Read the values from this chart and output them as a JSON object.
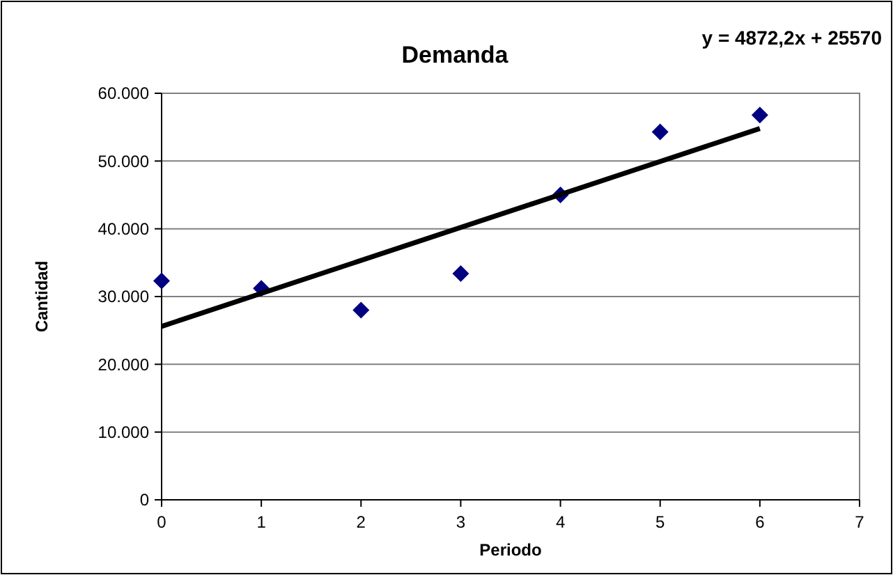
{
  "chart_data": {
    "type": "scatter",
    "title": "Demanda",
    "xlabel": "Periodo",
    "ylabel": "Cantidad",
    "annotations": [
      "y = 4872,2x + 25570"
    ],
    "x": [
      0,
      1,
      2,
      3,
      4,
      5,
      6
    ],
    "series": [
      {
        "color": "#000080",
        "values": [
          32300,
          31200,
          28000,
          33400,
          45000,
          54300,
          56800
        ],
        "marker": "diamond"
      },
      {
        "type": "line",
        "color": "#000000",
        "x": [
          0,
          6
        ],
        "values": [
          25600,
          54800
        ],
        "marker": "none",
        "line_style": "solid"
      }
    ],
    "xlim": [
      0,
      7
    ],
    "xticks": [
      0,
      1,
      2,
      3,
      4,
      5,
      6,
      7
    ],
    "ylim": [
      0,
      60000
    ],
    "yticks": [
      0,
      {
        "value": 10000,
        "label": "10.000"
      },
      {
        "value": 20000,
        "label": "20.000"
      },
      {
        "value": 30000,
        "label": "30.000"
      },
      {
        "value": 40000,
        "label": "40.000"
      },
      {
        "value": 50000,
        "label": "50.000"
      },
      {
        "value": 60000,
        "label": "60.000"
      }
    ],
    "grid": "y"
  }
}
